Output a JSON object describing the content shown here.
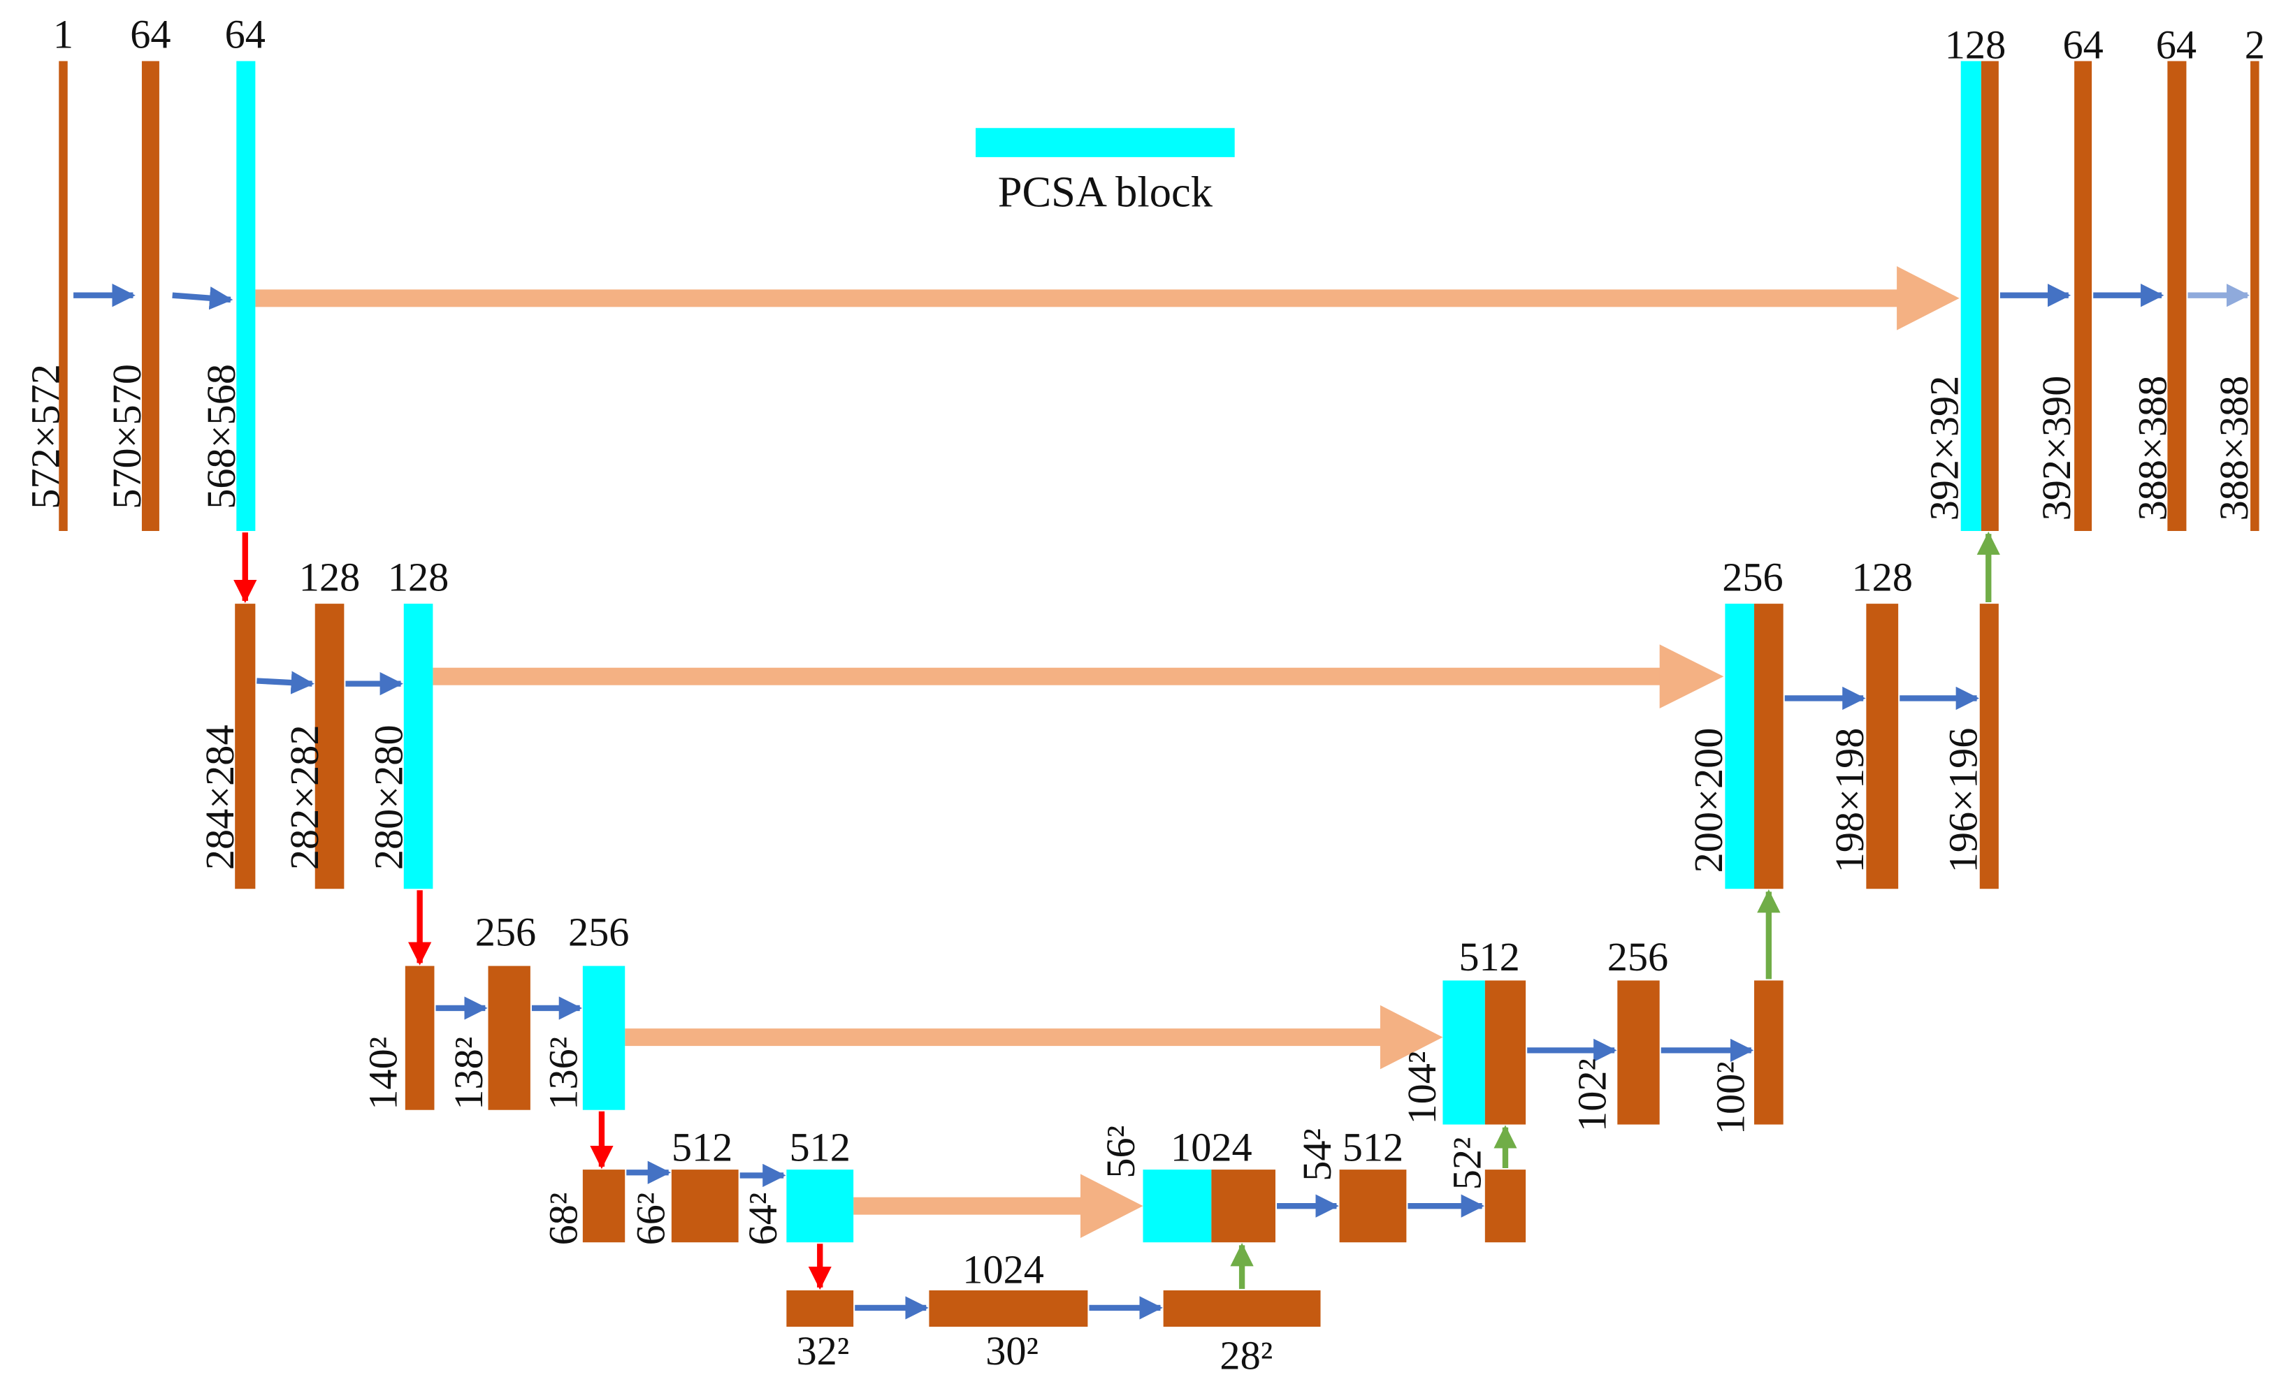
{
  "colors": {
    "feature_map": "#c55a11",
    "pcsa": "#00ffff",
    "conv": "#4472c4",
    "final_conv": "#8faadc",
    "pool": "#ff0000",
    "upconv": "#70ad47",
    "skip": "#f4b183"
  },
  "legend": {
    "label": "PCSA block"
  },
  "channels": {
    "l1_in": "1",
    "l1_c1": "64",
    "l1_c2": "64",
    "l2_c1": "128",
    "l2_c2": "128",
    "l3_c1": "256",
    "l3_c2": "256",
    "l4_c1": "512",
    "l4_c2": "512",
    "l5": "1024",
    "d4_cat": "1024",
    "d4_c": "512",
    "d3_cat": "512",
    "d3_c": "256",
    "d2_cat": "256",
    "d2_c": "128",
    "d1_cat": "128",
    "d1_c1": "64",
    "d1_c2": "64",
    "d1_out": "2"
  },
  "sizes": {
    "l1_in": "572×572",
    "l1_c1": "570×570",
    "l1_c2": "568×568",
    "l2_in": "284×284",
    "l2_c1": "282×282",
    "l2_c2": "280×280",
    "l3_in": "140²",
    "l3_c1": "138²",
    "l3_c2": "136²",
    "l4_in": "68²",
    "l4_c1": "66²",
    "l4_c2": "64²",
    "l5_in": "32²",
    "l5_c1": "30²",
    "l5_c2": "28²",
    "d4_cat": "56²",
    "d4_c1": "54²",
    "d4_c2": "52²",
    "d3_cat": "104²",
    "d3_c1": "102²",
    "d3_c2": "100²",
    "d2_cat": "200×200",
    "d2_c1": "198×198",
    "d2_c2": "196×196",
    "d1_cat": "392×392",
    "d1_c1": "392×390",
    "d1_c2": "388×388",
    "d1_out": "388×388"
  }
}
